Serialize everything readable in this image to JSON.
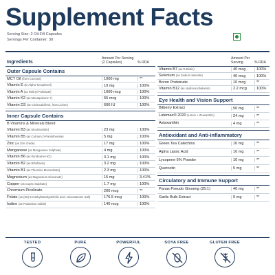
{
  "title": "Supplement Facts",
  "serving_size": "Serving Size: 2 Oil-Fill Capsules",
  "servings_per": "Servings Per Container: 30",
  "header": {
    "ingredients": "Ingredients",
    "amount": "Amount Per Serving",
    "amount_sub": "(2 Capsules)",
    "rda": "% RDA",
    "amount_right": "Amount Per Serving",
    "rda_right": "% RDA"
  },
  "outer": {
    "title": "Outer Capsule Contains",
    "rows": [
      {
        "name": "MCT Oil",
        "note": "(from Coconut)",
        "amount": "1000 mg",
        "rda": "**"
      },
      {
        "name": "Vitamin E",
        "note": "(D-Alpha Tocopherol)",
        "amount": "10 mg",
        "rda": "100%"
      },
      {
        "name": "Vitamin A",
        "note": "(as Retinyl Palmitate)",
        "amount": "1000 mcg",
        "rda": "100%"
      },
      {
        "name": "Vitamin K2",
        "note": "(as Menaquinone-7)",
        "amount": "55 mcg",
        "rda": "100%"
      },
      {
        "name": "Vitamin D3",
        "note": "(as Cholecalciferol, from Lichen)",
        "amount": "600 IU",
        "rda": "100%"
      }
    ]
  },
  "inner": {
    "title": "Inner Capsule Contains",
    "subtitle": "B Vitamins & Minerals Blend",
    "rows": [
      {
        "name": "Vitamin B3",
        "note": "(as Nicotinamide)",
        "amount": "23 mg",
        "rda": "100%"
      },
      {
        "name": "Vitamin B5",
        "note": "(as Calcium D-Pantothenate)",
        "amount": "5 mg",
        "rda": "100%"
      },
      {
        "name": "Zinc",
        "note": "(as Zinc Oxide)",
        "amount": "17 mg",
        "rda": "100%"
      },
      {
        "name": "Manganese",
        "note": "(as Manganese Sulphate)",
        "amount": "4 mg",
        "rda": "100%"
      },
      {
        "name": "Vitamin B6",
        "note": "(as Pyridoxine HCl)",
        "amount": "3.1 mg",
        "rda": "100%"
      },
      {
        "name": "Vitamin B2",
        "note": "(as Riboflavin)",
        "amount": "3.2 mg",
        "rda": "100%"
      },
      {
        "name": "Vitamin B1",
        "note": "(as Thiamine Mononitrate)",
        "amount": "2.3 mg",
        "rda": "100%"
      },
      {
        "name": "Magnesium",
        "note": "(as Magnesium Gluconate)",
        "amount": "15 mg",
        "rda": "3.41%"
      },
      {
        "name": "Copper",
        "note": "(as Cupric Sulphate)",
        "amount": "1.7 mg",
        "rda": "100%"
      },
      {
        "name": "Chromium Picolinate",
        "note": "",
        "amount": "200 mcg",
        "rda": "**"
      },
      {
        "name": "Folate",
        "note": "(as (6S)-5-methyltetrahydrofolic acid, Glucosamine Salt)",
        "amount": "176.5 mcg",
        "rda": "100%"
      },
      {
        "name": "Iodine",
        "note": "(as Potassium Iodide)",
        "amount": "140 mcg",
        "rda": "100%"
      }
    ]
  },
  "right_top": {
    "rows": [
      {
        "name": "Vitamin B7",
        "note": "(as D-Biotin)",
        "amount": "40 mcg",
        "rda": "100%"
      },
      {
        "name": "Selenium",
        "note": "(as Sodium Selenite)",
        "amount": "40 mcg",
        "rda": "100%"
      },
      {
        "name": "Boron Proteinate",
        "note": "",
        "amount": "10 mcg",
        "rda": "**"
      },
      {
        "name": "Vitamin B12",
        "note": "(as Hydroxocobalamin)",
        "amount": "2.2 mcg",
        "rda": "100%"
      }
    ]
  },
  "eye": {
    "title": "Eye Health and Vision Support",
    "rows": [
      {
        "name": "Bilberry Extract",
        "note": "",
        "amount": "50 mg",
        "rda": "**"
      },
      {
        "name": "Lutemax® 2020",
        "note": "(Lutein + Zeaxanthin)",
        "amount": "24 mg",
        "rda": "**"
      },
      {
        "name": "Astaxanthin",
        "note": "",
        "amount": "4 mg",
        "rda": "**"
      }
    ]
  },
  "anti": {
    "title": "Antioxidant and Anti-inflammatory",
    "rows": [
      {
        "name": "Green Tea Catechins",
        "note": "",
        "amount": "10 mg",
        "rda": "**"
      },
      {
        "name": "Alpha Lipoic Acid",
        "note": "",
        "amount": "10 mg",
        "rda": "**"
      },
      {
        "name": "Lycopene 6% Powder",
        "note": "",
        "amount": "10 mg",
        "rda": "**"
      },
      {
        "name": "Quercetin",
        "note": "",
        "amount": "5 mg",
        "rda": "**"
      }
    ]
  },
  "circ": {
    "title": "Circulatory and Immune Support",
    "rows": [
      {
        "name": "Panax Pseudo Ginseng (25:1)",
        "note": "",
        "amount": "40 mg",
        "rda": "**"
      },
      {
        "name": "Garlic Bulb Extract",
        "note": "",
        "amount": "5 mg",
        "rda": "**"
      }
    ]
  },
  "badges": [
    {
      "label": "TESTED",
      "icon": "test-tube-icon"
    },
    {
      "label": "PURE",
      "icon": "leaf-icon"
    },
    {
      "label": "POWERFUL",
      "icon": "lightning-icon"
    },
    {
      "label": "SOYA FREE",
      "icon": "no-soy-icon"
    },
    {
      "label": "GLUTEN FREE",
      "icon": "no-gluten-icon"
    }
  ],
  "colors": {
    "navy": "#1e3a5c",
    "veg_green": "#2e8b3e"
  }
}
